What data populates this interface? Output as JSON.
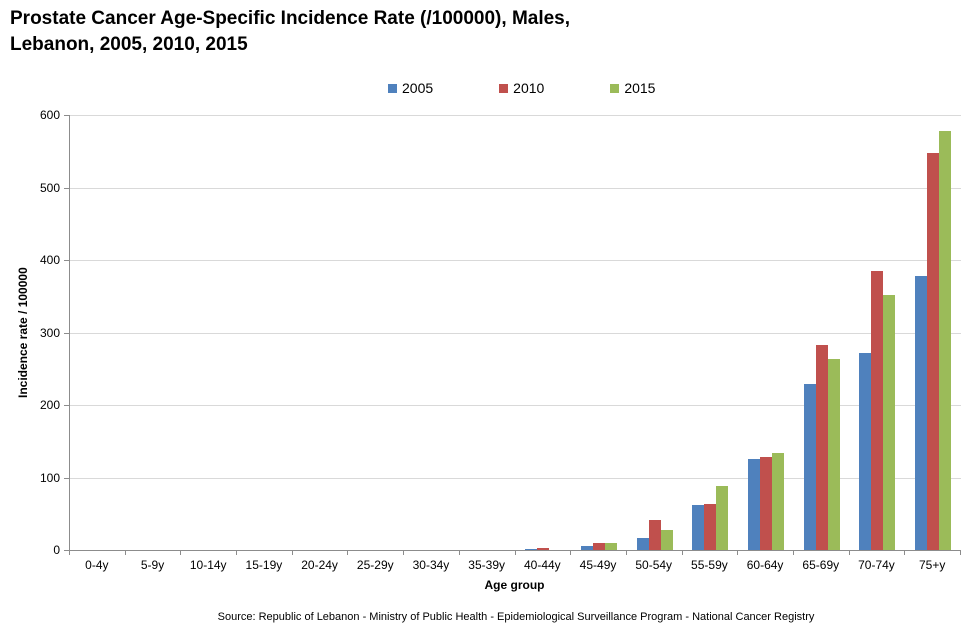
{
  "title": {
    "line1": "Prostate Cancer Age-Specific Incidence Rate (/100000), Males,",
    "line2": "Lebanon, 2005, 2010, 2015"
  },
  "source": "Source: Republic of Lebanon - Ministry of Public Health - Epidemiological Surveillance Program - National Cancer Registry",
  "colors": {
    "grid": "#d9d9d9",
    "axis": "#8c8c8c",
    "background": "#ffffff",
    "series_2005": "#4F81BD",
    "series_2010": "#C0504D",
    "series_2015": "#9BBB59"
  },
  "chart_data": {
    "type": "bar",
    "title": "Prostate Cancer Age-Specific Incidence Rate (/100000), Males, Lebanon, 2005, 2010, 2015",
    "categories": [
      "0-4y",
      "5-9y",
      "10-14y",
      "15-19y",
      "20-24y",
      "25-29y",
      "30-34y",
      "35-39y",
      "40-44y",
      "45-49y",
      "50-54y",
      "55-59y",
      "60-64y",
      "65-69y",
      "70-74y",
      "75+y"
    ],
    "series": [
      {
        "name": "2005",
        "color": "#4F81BD",
        "values": [
          0,
          0,
          0,
          0,
          0,
          0,
          0,
          0,
          2,
          5,
          16,
          62,
          126,
          229,
          272,
          378
        ]
      },
      {
        "name": "2010",
        "color": "#C0504D",
        "values": [
          0,
          0,
          0,
          0,
          0,
          0,
          0,
          0,
          2.5,
          9,
          41,
          64,
          128,
          283,
          385,
          548
        ]
      },
      {
        "name": "2015",
        "color": "#9BBB59",
        "values": [
          0,
          0,
          0,
          0,
          0,
          0,
          0,
          0,
          0,
          9,
          28,
          88,
          134,
          264,
          352,
          578
        ]
      }
    ],
    "xlabel": "Age group",
    "ylabel": "Incidence rate / 100000",
    "ylim": [
      0,
      600
    ],
    "yticks": [
      0,
      100,
      200,
      300,
      400,
      500,
      600
    ],
    "grid": true,
    "legend_position": "top"
  }
}
